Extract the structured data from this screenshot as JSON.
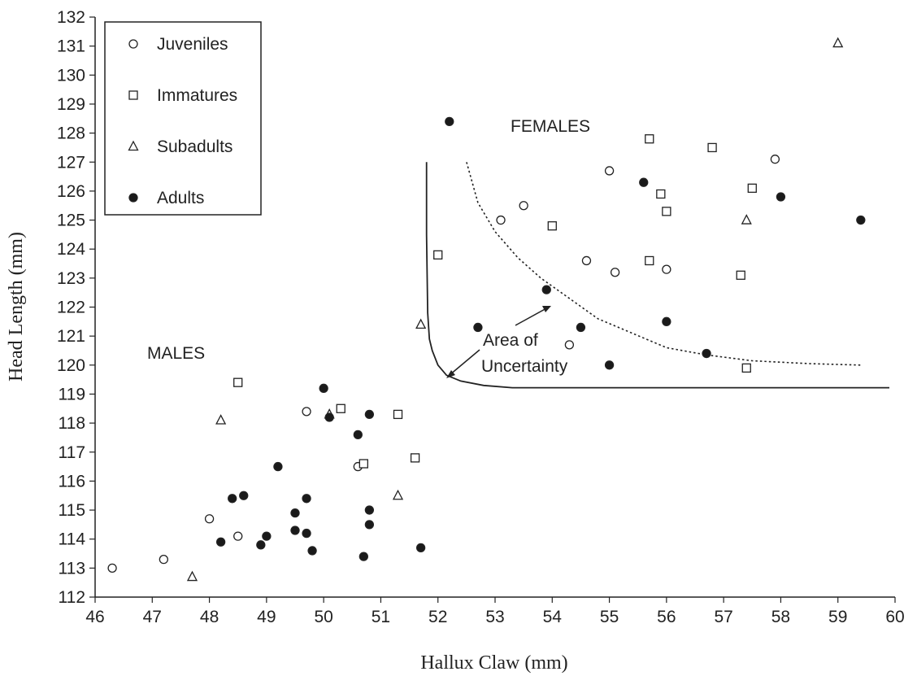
{
  "chart_data": {
    "type": "scatter",
    "xlabel": "Hallux Claw (mm)",
    "ylabel": "Head Length (mm)",
    "xlim": [
      46,
      60
    ],
    "ylim": [
      112,
      132
    ],
    "x_ticks": [
      46,
      47,
      48,
      49,
      50,
      51,
      52,
      53,
      54,
      55,
      56,
      57,
      58,
      59,
      60
    ],
    "y_ticks": [
      112,
      113,
      114,
      115,
      116,
      117,
      118,
      119,
      120,
      121,
      122,
      123,
      124,
      125,
      126,
      127,
      128,
      129,
      130,
      131,
      132
    ],
    "grid": false,
    "legend_position": "top-left",
    "series": [
      {
        "name": "Juveniles",
        "marker": "circle",
        "color": "#ffffff",
        "points": [
          [
            46.3,
            113.0
          ],
          [
            47.2,
            113.3
          ],
          [
            48.0,
            114.7
          ],
          [
            48.5,
            114.1
          ],
          [
            49.7,
            118.4
          ],
          [
            50.6,
            116.5
          ],
          [
            53.1,
            125.0
          ],
          [
            53.5,
            125.5
          ],
          [
            54.3,
            120.7
          ],
          [
            54.6,
            123.6
          ],
          [
            55.0,
            126.7
          ],
          [
            55.1,
            123.2
          ],
          [
            56.0,
            123.3
          ],
          [
            57.9,
            127.1
          ]
        ]
      },
      {
        "name": "Immatures",
        "marker": "square",
        "color": "#ffffff",
        "points": [
          [
            48.5,
            119.4
          ],
          [
            50.3,
            118.5
          ],
          [
            50.7,
            116.6
          ],
          [
            51.3,
            118.3
          ],
          [
            51.6,
            116.8
          ],
          [
            52.0,
            123.8
          ],
          [
            54.0,
            124.8
          ],
          [
            55.7,
            127.8
          ],
          [
            55.7,
            123.6
          ],
          [
            55.9,
            125.9
          ],
          [
            56.0,
            125.3
          ],
          [
            56.8,
            127.5
          ],
          [
            57.3,
            123.1
          ],
          [
            57.4,
            119.9
          ],
          [
            57.5,
            126.1
          ]
        ]
      },
      {
        "name": "Subadults",
        "marker": "triangle",
        "color": "#ffffff",
        "points": [
          [
            47.7,
            112.7
          ],
          [
            48.2,
            118.1
          ],
          [
            50.1,
            118.3
          ],
          [
            51.3,
            115.5
          ],
          [
            51.7,
            121.4
          ],
          [
            57.4,
            125.0
          ],
          [
            59.0,
            131.1
          ]
        ]
      },
      {
        "name": "Adults",
        "marker": "filled-circle",
        "color": "#1a1a1a",
        "points": [
          [
            48.2,
            113.9
          ],
          [
            48.4,
            115.4
          ],
          [
            48.6,
            115.5
          ],
          [
            48.9,
            113.8
          ],
          [
            49.0,
            114.1
          ],
          [
            49.2,
            116.5
          ],
          [
            49.5,
            114.9
          ],
          [
            49.5,
            114.3
          ],
          [
            49.7,
            115.4
          ],
          [
            49.7,
            114.2
          ],
          [
            49.8,
            113.6
          ],
          [
            50.0,
            119.2
          ],
          [
            50.1,
            118.2
          ],
          [
            50.6,
            117.6
          ],
          [
            50.7,
            113.4
          ],
          [
            50.8,
            118.3
          ],
          [
            50.8,
            115.0
          ],
          [
            50.8,
            114.5
          ],
          [
            51.7,
            113.7
          ],
          [
            52.2,
            128.4
          ],
          [
            52.7,
            121.3
          ],
          [
            53.9,
            122.6
          ],
          [
            54.5,
            121.3
          ],
          [
            55.0,
            120.0
          ],
          [
            55.6,
            126.3
          ],
          [
            56.0,
            121.5
          ],
          [
            56.7,
            120.4
          ],
          [
            58.0,
            125.8
          ],
          [
            59.4,
            125.0
          ]
        ]
      }
    ],
    "boundary_lines": [
      {
        "style": "solid",
        "points": [
          [
            51.8,
            127.0
          ],
          [
            51.8,
            124.5
          ],
          [
            51.82,
            121.8
          ],
          [
            51.85,
            120.9
          ],
          [
            51.9,
            120.5
          ],
          [
            52.0,
            120.0
          ],
          [
            52.15,
            119.65
          ],
          [
            52.4,
            119.45
          ],
          [
            52.8,
            119.3
          ],
          [
            53.3,
            119.22
          ],
          [
            59.9,
            119.22
          ]
        ]
      },
      {
        "style": "dotted",
        "points": [
          [
            52.5,
            127.0
          ],
          [
            52.7,
            125.6
          ],
          [
            53.0,
            124.6
          ],
          [
            53.4,
            123.7
          ],
          [
            53.8,
            123.0
          ],
          [
            54.3,
            122.3
          ],
          [
            54.8,
            121.6
          ],
          [
            55.4,
            121.1
          ],
          [
            56.0,
            120.6
          ],
          [
            56.7,
            120.35
          ],
          [
            57.5,
            120.15
          ],
          [
            58.5,
            120.05
          ],
          [
            59.4,
            120.0
          ]
        ]
      }
    ],
    "annotations": [
      {
        "id": "males",
        "text": "MALES"
      },
      {
        "id": "females",
        "text": "FEMALES"
      },
      {
        "id": "area_line1",
        "text": "Area of"
      },
      {
        "id": "area_line2",
        "text": "Uncertainty"
      }
    ]
  }
}
